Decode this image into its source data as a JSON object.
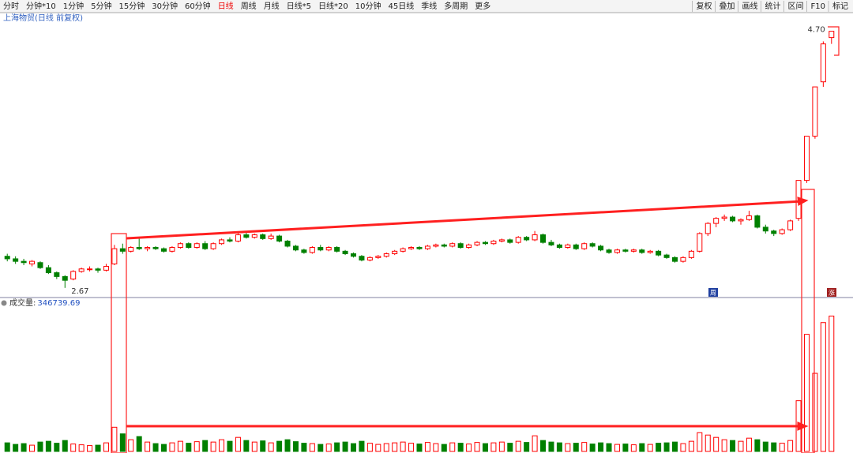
{
  "toolbar": {
    "left": [
      "分时",
      "分钟*10",
      "1分钟",
      "5分钟",
      "15分钟",
      "30分钟",
      "60分钟",
      "日线",
      "周线",
      "月线",
      "日线*5",
      "日线*20",
      "10分钟",
      "45日线",
      "季线",
      "多周期",
      "更多"
    ],
    "right": [
      "复权",
      "叠加",
      "画线",
      "统计",
      "区间",
      "F10",
      "标记"
    ]
  },
  "badges": [
    "周",
    "涨"
  ],
  "chart_data": [
    {
      "type": "candlestick",
      "title": "上海物贸(日线 前复权)",
      "high_label": "4.70",
      "low_label": "2.67",
      "up_color": "#ff0000",
      "down_color": "#008000",
      "ylim": [
        2.6,
        4.76
      ],
      "candles": [
        [
          2.92,
          2.94,
          2.88,
          2.9
        ],
        [
          2.9,
          2.92,
          2.86,
          2.88
        ],
        [
          2.88,
          2.9,
          2.85,
          2.87
        ],
        [
          2.86,
          2.89,
          2.84,
          2.88
        ],
        [
          2.87,
          2.88,
          2.82,
          2.83
        ],
        [
          2.83,
          2.85,
          2.78,
          2.79
        ],
        [
          2.79,
          2.8,
          2.74,
          2.76
        ],
        [
          2.76,
          2.77,
          2.67,
          2.73
        ],
        [
          2.74,
          2.81,
          2.73,
          2.8
        ],
        [
          2.8,
          2.83,
          2.79,
          2.82
        ],
        [
          2.82,
          2.84,
          2.8,
          2.82
        ],
        [
          2.82,
          2.83,
          2.79,
          2.81
        ],
        [
          2.81,
          2.86,
          2.8,
          2.84
        ],
        [
          2.86,
          3.01,
          2.85,
          2.98
        ],
        [
          2.98,
          3.02,
          2.94,
          2.96
        ],
        [
          2.96,
          3.0,
          2.95,
          2.99
        ],
        [
          2.99,
          3.06,
          2.97,
          2.98
        ],
        [
          2.98,
          3.0,
          2.96,
          2.99
        ],
        [
          2.99,
          3.0,
          2.97,
          2.98
        ],
        [
          2.98,
          2.99,
          2.95,
          2.96
        ],
        [
          2.96,
          3.0,
          2.95,
          2.99
        ],
        [
          2.99,
          3.03,
          2.98,
          3.02
        ],
        [
          3.02,
          3.03,
          2.98,
          2.99
        ],
        [
          2.99,
          3.03,
          2.98,
          3.02
        ],
        [
          3.02,
          3.04,
          2.97,
          2.98
        ],
        [
          2.98,
          3.03,
          2.97,
          3.02
        ],
        [
          3.02,
          3.06,
          3.01,
          3.05
        ],
        [
          3.05,
          3.07,
          3.03,
          3.04
        ],
        [
          3.04,
          3.11,
          3.03,
          3.09
        ],
        [
          3.09,
          3.11,
          3.06,
          3.07
        ],
        [
          3.07,
          3.1,
          3.06,
          3.09
        ],
        [
          3.09,
          3.1,
          3.05,
          3.06
        ],
        [
          3.06,
          3.1,
          3.05,
          3.08
        ],
        [
          3.08,
          3.09,
          3.03,
          3.04
        ],
        [
          3.04,
          3.05,
          2.99,
          3.0
        ],
        [
          3.0,
          3.01,
          2.96,
          2.97
        ],
        [
          2.97,
          2.98,
          2.94,
          2.95
        ],
        [
          2.95,
          3.0,
          2.94,
          2.99
        ],
        [
          2.99,
          3.01,
          2.96,
          2.97
        ],
        [
          2.97,
          3.0,
          2.96,
          2.99
        ],
        [
          2.99,
          3.0,
          2.95,
          2.96
        ],
        [
          2.96,
          2.97,
          2.93,
          2.94
        ],
        [
          2.94,
          2.95,
          2.91,
          2.92
        ],
        [
          2.92,
          2.93,
          2.88,
          2.89
        ],
        [
          2.89,
          2.92,
          2.88,
          2.91
        ],
        [
          2.91,
          2.93,
          2.9,
          2.92
        ],
        [
          2.92,
          2.95,
          2.91,
          2.94
        ],
        [
          2.94,
          2.97,
          2.93,
          2.96
        ],
        [
          2.96,
          2.99,
          2.95,
          2.98
        ],
        [
          2.98,
          3.0,
          2.97,
          2.99
        ],
        [
          2.99,
          3.0,
          2.97,
          2.98
        ],
        [
          2.98,
          3.01,
          2.97,
          3.0
        ],
        [
          3.0,
          3.02,
          2.99,
          3.01
        ],
        [
          3.01,
          3.02,
          2.99,
          3.0
        ],
        [
          3.0,
          3.03,
          2.99,
          3.02
        ],
        [
          3.02,
          3.03,
          2.98,
          2.99
        ],
        [
          2.99,
          3.02,
          2.98,
          3.01
        ],
        [
          3.01,
          3.04,
          3.0,
          3.03
        ],
        [
          3.03,
          3.04,
          3.01,
          3.02
        ],
        [
          3.02,
          3.05,
          3.01,
          3.04
        ],
        [
          3.04,
          3.06,
          3.03,
          3.05
        ],
        [
          3.05,
          3.06,
          3.02,
          3.03
        ],
        [
          3.03,
          3.08,
          3.02,
          3.07
        ],
        [
          3.07,
          3.08,
          3.04,
          3.05
        ],
        [
          3.05,
          3.12,
          3.04,
          3.09
        ],
        [
          3.09,
          3.1,
          3.02,
          3.03
        ],
        [
          3.03,
          3.05,
          3.0,
          3.01
        ],
        [
          3.01,
          3.02,
          2.98,
          2.99
        ],
        [
          2.99,
          3.02,
          2.98,
          3.01
        ],
        [
          3.01,
          3.02,
          2.97,
          2.98
        ],
        [
          2.98,
          3.03,
          2.97,
          3.02
        ],
        [
          3.02,
          3.03,
          2.99,
          3.0
        ],
        [
          3.0,
          3.01,
          2.96,
          2.97
        ],
        [
          2.97,
          2.98,
          2.94,
          2.95
        ],
        [
          2.95,
          2.98,
          2.94,
          2.97
        ],
        [
          2.97,
          2.98,
          2.95,
          2.96
        ],
        [
          2.96,
          2.98,
          2.95,
          2.97
        ],
        [
          2.97,
          2.98,
          2.94,
          2.95
        ],
        [
          2.95,
          2.97,
          2.94,
          2.96
        ],
        [
          2.96,
          2.97,
          2.92,
          2.93
        ],
        [
          2.93,
          2.94,
          2.9,
          2.91
        ],
        [
          2.91,
          2.92,
          2.87,
          2.88
        ],
        [
          2.88,
          2.92,
          2.87,
          2.91
        ],
        [
          2.91,
          2.97,
          2.9,
          2.96
        ],
        [
          2.96,
          3.11,
          2.95,
          3.1
        ],
        [
          3.1,
          3.19,
          3.08,
          3.18
        ],
        [
          3.18,
          3.23,
          3.15,
          3.22
        ],
        [
          3.22,
          3.25,
          3.2,
          3.23
        ],
        [
          3.23,
          3.24,
          3.19,
          3.2
        ],
        [
          3.2,
          3.22,
          3.17,
          3.21
        ],
        [
          3.21,
          3.28,
          3.2,
          3.24
        ],
        [
          3.24,
          3.25,
          3.14,
          3.15
        ],
        [
          3.15,
          3.17,
          3.1,
          3.12
        ],
        [
          3.12,
          3.13,
          3.08,
          3.1
        ],
        [
          3.1,
          3.14,
          3.09,
          3.13
        ],
        [
          3.13,
          3.21,
          3.12,
          3.2
        ],
        [
          3.22,
          3.52,
          3.2,
          3.52
        ],
        [
          3.52,
          3.87,
          3.5,
          3.87
        ],
        [
          3.87,
          4.26,
          3.85,
          4.26
        ],
        [
          4.3,
          4.62,
          4.26,
          4.6
        ],
        [
          4.65,
          4.7,
          4.6,
          4.7
        ]
      ]
    },
    {
      "type": "bar",
      "title": "成交量:",
      "ylim": [
        0,
        380000
      ],
      "values": [
        22000,
        18000,
        20000,
        16000,
        24000,
        26000,
        21000,
        28000,
        19000,
        17000,
        15000,
        16000,
        22000,
        62000,
        45000,
        30000,
        38000,
        24000,
        20000,
        18000,
        22000,
        26000,
        21000,
        25000,
        28000,
        24000,
        30000,
        26000,
        36000,
        28000,
        24000,
        27000,
        22000,
        26000,
        30000,
        25000,
        21000,
        20000,
        18000,
        19000,
        22000,
        24000,
        20000,
        26000,
        21000,
        18000,
        20000,
        22000,
        24000,
        21000,
        19000,
        23000,
        20000,
        18000,
        22000,
        21000,
        19000,
        23000,
        20000,
        22000,
        24000,
        21000,
        26000,
        23000,
        40000,
        28000,
        24000,
        22000,
        20000,
        21000,
        23000,
        19000,
        22000,
        20000,
        18000,
        19000,
        17000,
        20000,
        18000,
        21000,
        22000,
        24000,
        20000,
        26000,
        48000,
        42000,
        36000,
        30000,
        28000,
        26000,
        34000,
        30000,
        24000,
        22000,
        21000,
        28000,
        130000,
        300000,
        200000,
        330000,
        346739.69
      ]
    }
  ]
}
